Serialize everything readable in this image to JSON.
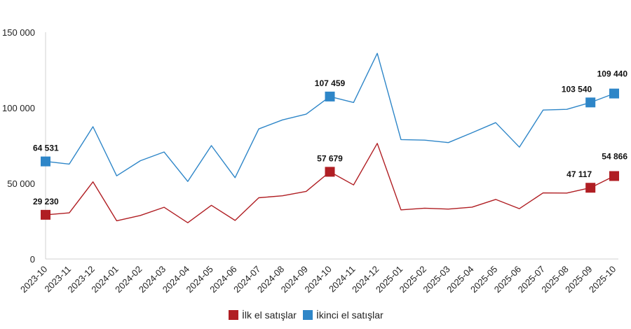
{
  "chart_data": {
    "type": "line",
    "title": "",
    "xlabel": "",
    "ylabel": "",
    "categories": [
      "2023-10",
      "2023-11",
      "2023-12",
      "2024-01",
      "2024-02",
      "2024-03",
      "2024-04",
      "2024-05",
      "2024-06",
      "2024-07",
      "2024-08",
      "2024-09",
      "2024-10",
      "2024-11",
      "2024-12",
      "2025-01",
      "2025-02",
      "2025-03",
      "2025-04",
      "2025-05",
      "2025-06",
      "2025-07",
      "2025-08",
      "2025-09",
      "2025-10"
    ],
    "ylim": [
      0,
      150000
    ],
    "yticks": [
      {
        "value": 0,
        "label": "0"
      },
      {
        "value": 50000,
        "label": "50 000"
      },
      {
        "value": 100000,
        "label": "100 000"
      },
      {
        "value": 150000,
        "label": "150 000"
      }
    ],
    "grid": false,
    "legend_position": "bottom",
    "series": [
      {
        "name": "İlk el satışlar",
        "color": "#B01E23",
        "values": [
          29230,
          30500,
          51000,
          25300,
          28800,
          34200,
          24000,
          35500,
          25500,
          40500,
          41800,
          44700,
          57679,
          49000,
          76500,
          32500,
          33600,
          33000,
          34300,
          39400,
          33300,
          43700,
          43600,
          47117,
          54866
        ],
        "markers": [
          {
            "index": 0,
            "label": "29 230"
          },
          {
            "index": 12,
            "label": "57 679"
          },
          {
            "index": 23,
            "label": "47 117"
          },
          {
            "index": 24,
            "label": "54 866"
          }
        ]
      },
      {
        "name": "İkinci el satışlar",
        "color": "#2E86C8",
        "values": [
          64531,
          62800,
          87500,
          55000,
          65000,
          70800,
          51300,
          75000,
          53800,
          86000,
          92000,
          95800,
          107459,
          103500,
          136000,
          79000,
          78600,
          77000,
          83500,
          90200,
          74000,
          98500,
          99000,
          103540,
          109440
        ],
        "markers": [
          {
            "index": 0,
            "label": "64 531"
          },
          {
            "index": 12,
            "label": "107 459"
          },
          {
            "index": 23,
            "label": "103 540"
          },
          {
            "index": 24,
            "label": "109 440"
          }
        ]
      }
    ]
  }
}
